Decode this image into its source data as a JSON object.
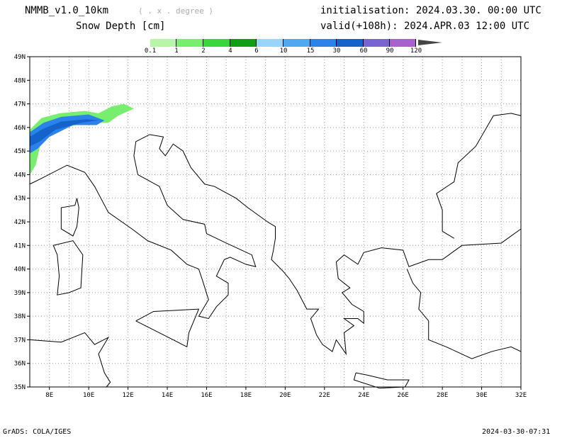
{
  "header": {
    "model": "NMMB_v1.0_10km",
    "resolution": "( . x . degree )",
    "variable": "Snow Depth [cm]",
    "init": "initialisation: 2024.03.30.  00:00 UTC",
    "valid": "valid(+108h): 2024.APR.03 12:00 UTC"
  },
  "colorbar": {
    "labels": [
      "0.1",
      "1",
      "2",
      "4",
      "6",
      "10",
      "15",
      "30",
      "60",
      "90",
      "120"
    ],
    "colors": [
      "#b8f5a8",
      "#78ee6e",
      "#3ad63e",
      "#109f14",
      "#9ad4fa",
      "#52a8f0",
      "#2a82ea",
      "#1462cc",
      "#7a64d4",
      "#a862cc"
    ],
    "over_color": "#444444"
  },
  "map": {
    "lat_labels": [
      "49N",
      "48N",
      "47N",
      "46N",
      "45N",
      "44N",
      "43N",
      "42N",
      "41N",
      "40N",
      "39N",
      "38N",
      "37N",
      "36N",
      "35N"
    ],
    "lon_labels": [
      "8E",
      "10E",
      "12E",
      "14E",
      "16E",
      "18E",
      "20E",
      "22E",
      "24E",
      "26E",
      "28E",
      "30E",
      "32E"
    ],
    "lon_range": [
      7,
      32
    ],
    "lat_range": [
      35,
      49
    ]
  },
  "footer": {
    "left": "GrADS: COLA/IGES",
    "right": "2024-03-30-07:31"
  }
}
